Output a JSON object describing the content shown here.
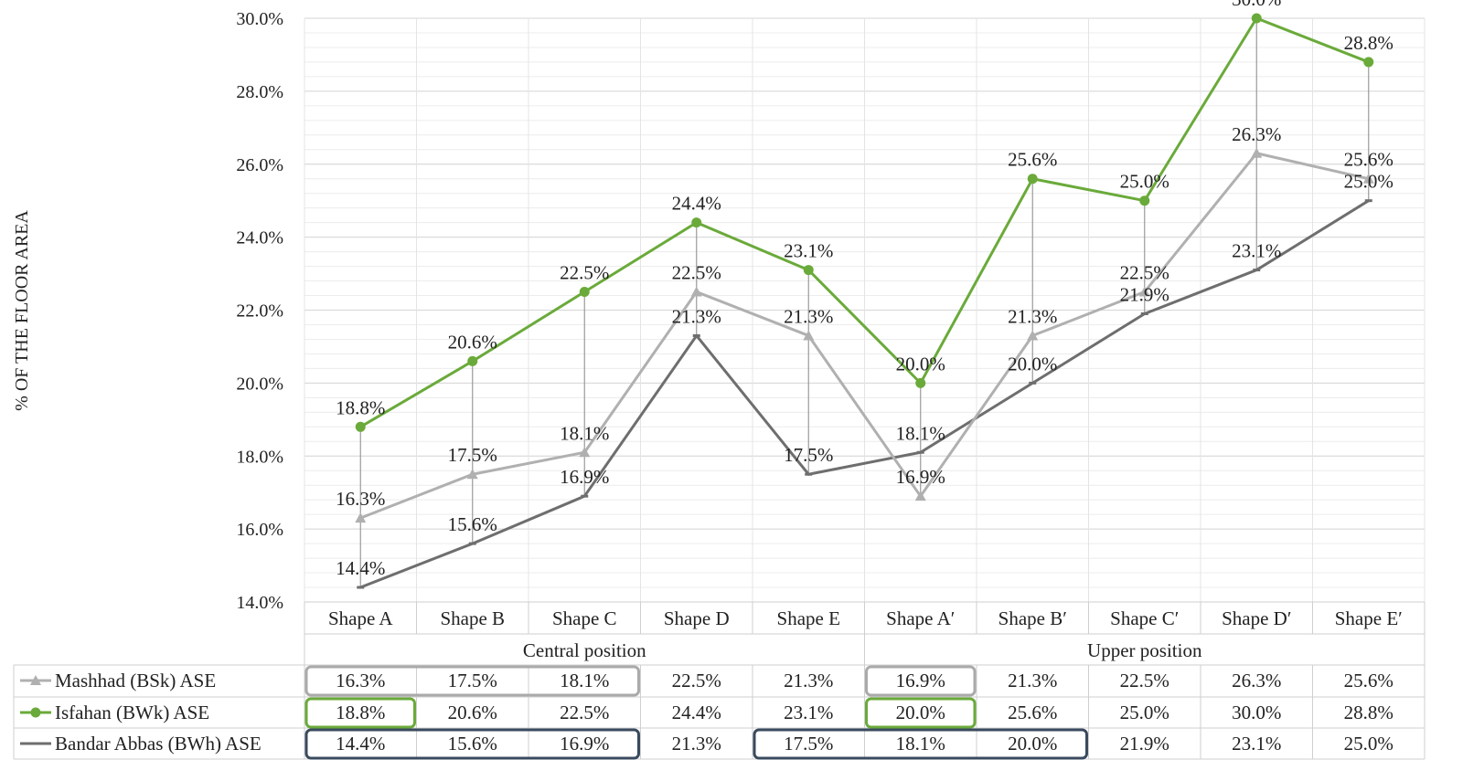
{
  "chart_data": {
    "type": "line",
    "ylabel": "% OF THE FLOOR AREA",
    "xlabel": "",
    "ylim": [
      14,
      30
    ],
    "y_ticks": [
      "14.0%",
      "16.0%",
      "18.0%",
      "20.0%",
      "22.0%",
      "24.0%",
      "26.0%",
      "28.0%",
      "30.0%"
    ],
    "y_tick_values": [
      14,
      16,
      18,
      20,
      22,
      24,
      26,
      28,
      30
    ],
    "grid": true,
    "legend": "data-table",
    "categories": [
      "Shape A",
      "Shape B",
      "Shape C",
      "Shape D",
      "Shape E",
      "Shape A′",
      "Shape B′",
      "Shape C′",
      "Shape D′",
      "Shape E′"
    ],
    "groups": [
      {
        "label": "Central position",
        "start": 0,
        "end": 4
      },
      {
        "label": "Upper position",
        "start": 5,
        "end": 9
      }
    ],
    "series": [
      {
        "name": "Mashhad (BSk) ASE",
        "color": "#b0b0b0",
        "marker": "triangle",
        "values": [
          16.3,
          17.5,
          18.1,
          22.5,
          21.3,
          16.9,
          21.3,
          22.5,
          26.3,
          25.6
        ],
        "labels": [
          "16.3%",
          "17.5%",
          "18.1%",
          "22.5%",
          "21.3%",
          "16.9%",
          "21.3%",
          "22.5%",
          "26.3%",
          "25.6%"
        ]
      },
      {
        "name": "Isfahan (BWk) ASE",
        "color": "#6aaa3a",
        "marker": "circle",
        "values": [
          18.8,
          20.6,
          22.5,
          24.4,
          23.1,
          20.0,
          25.6,
          25.0,
          30.0,
          28.8
        ],
        "labels": [
          "18.8%",
          "20.6%",
          "22.5%",
          "24.4%",
          "23.1%",
          "20.0%",
          "25.6%",
          "25.0%",
          "30.0%",
          "28.8%"
        ]
      },
      {
        "name": "Bandar Abbas (BWh) ASE",
        "color": "#6e6e6e",
        "marker": "dash",
        "values": [
          14.4,
          15.6,
          16.9,
          21.3,
          17.5,
          18.1,
          20.0,
          21.9,
          23.1,
          25.0
        ],
        "labels": [
          "14.4%",
          "15.6%",
          "16.9%",
          "21.3%",
          "17.5%",
          "18.1%",
          "20.0%",
          "21.9%",
          "23.1%",
          "25.0%"
        ]
      }
    ],
    "highlights": [
      {
        "series": 0,
        "start": 0,
        "end": 2,
        "color": "#aaaaaa"
      },
      {
        "series": 0,
        "start": 5,
        "end": 5,
        "color": "#aaaaaa"
      },
      {
        "series": 1,
        "start": 0,
        "end": 0,
        "color": "#6aaa3a"
      },
      {
        "series": 1,
        "start": 5,
        "end": 5,
        "color": "#6aaa3a"
      },
      {
        "series": 2,
        "start": 0,
        "end": 2,
        "color": "#3a4a5e"
      },
      {
        "series": 2,
        "start": 4,
        "end": 6,
        "color": "#3a4a5e"
      }
    ]
  }
}
